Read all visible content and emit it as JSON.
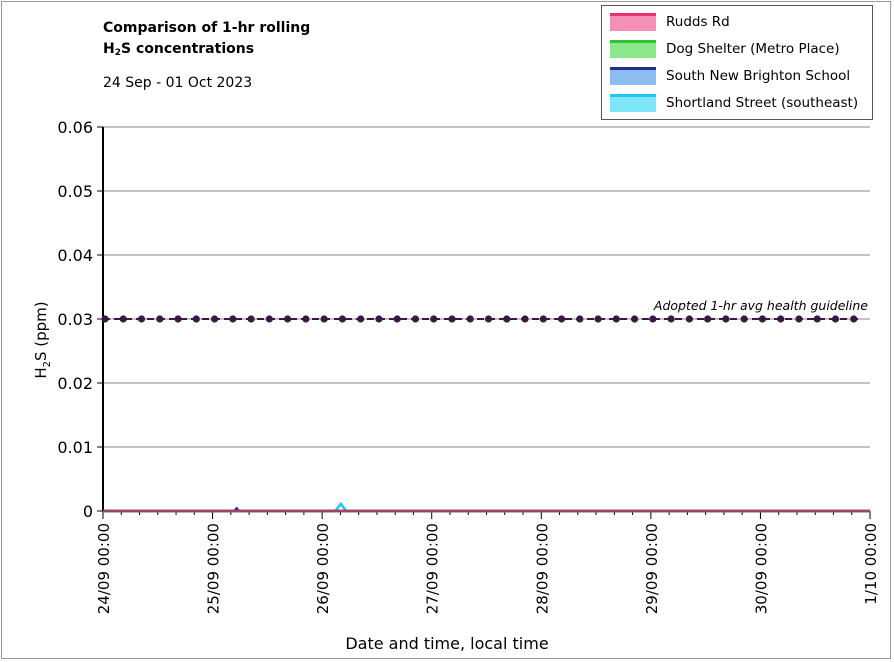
{
  "chart_data": {
    "type": "line",
    "title_line1": "Comparison of 1-hr rolling",
    "title_line2_prefix": "H",
    "title_line2_sub": "2",
    "title_line2_suffix": "S concentrations",
    "subtitle": "24 Sep - 01 Oct 2023",
    "ylabel_prefix": "H",
    "ylabel_sub": "2",
    "ylabel_suffix": "S (ppm)",
    "xlabel": "Date and time, local time",
    "ylim": [
      0,
      0.06
    ],
    "y_ticks": [
      "0",
      "0.01",
      "0.02",
      "0.03",
      "0.04",
      "0.05",
      "0.06"
    ],
    "y_tick_values": [
      0,
      0.01,
      0.02,
      0.03,
      0.04,
      0.05,
      0.06
    ],
    "x_ticks": [
      "24/09 00:00",
      "25/09 00:00",
      "26/09 00:00",
      "27/09 00:00",
      "28/09 00:00",
      "29/09 00:00",
      "30/09 00:00",
      "1/10 00:00"
    ],
    "x_range_days": [
      0,
      7
    ],
    "grid": true,
    "legend_position": "top-right",
    "series": [
      {
        "name": "Rudds Rd",
        "color": "#e8316f",
        "fill": "#f58fb4",
        "points": [
          [
            0,
            0
          ],
          [
            7,
            0
          ]
        ]
      },
      {
        "name": "Dog Shelter (Metro Place)",
        "color": "#2ec42e",
        "fill": "#8be78b",
        "points": [
          [
            0,
            0
          ],
          [
            7,
            0
          ]
        ]
      },
      {
        "name": "South New Brighton School",
        "color": "#1f2f8a",
        "fill": "#8fbcf0",
        "points": [
          [
            0,
            0
          ],
          [
            1.2,
            0
          ],
          [
            1.22,
            0.0004
          ],
          [
            1.24,
            0
          ],
          [
            7,
            0
          ]
        ]
      },
      {
        "name": "Shortland Street (southeast)",
        "color": "#1ec8f0",
        "fill": "#7fe6fa",
        "points": [
          [
            0,
            0
          ],
          [
            2.12,
            0
          ],
          [
            2.17,
            0.0011
          ],
          [
            2.22,
            0
          ],
          [
            7,
            0
          ]
        ]
      }
    ],
    "guideline": {
      "label": "Adopted 1-hr avg health guideline",
      "value": 0.03,
      "color": "#3b1746"
    }
  }
}
